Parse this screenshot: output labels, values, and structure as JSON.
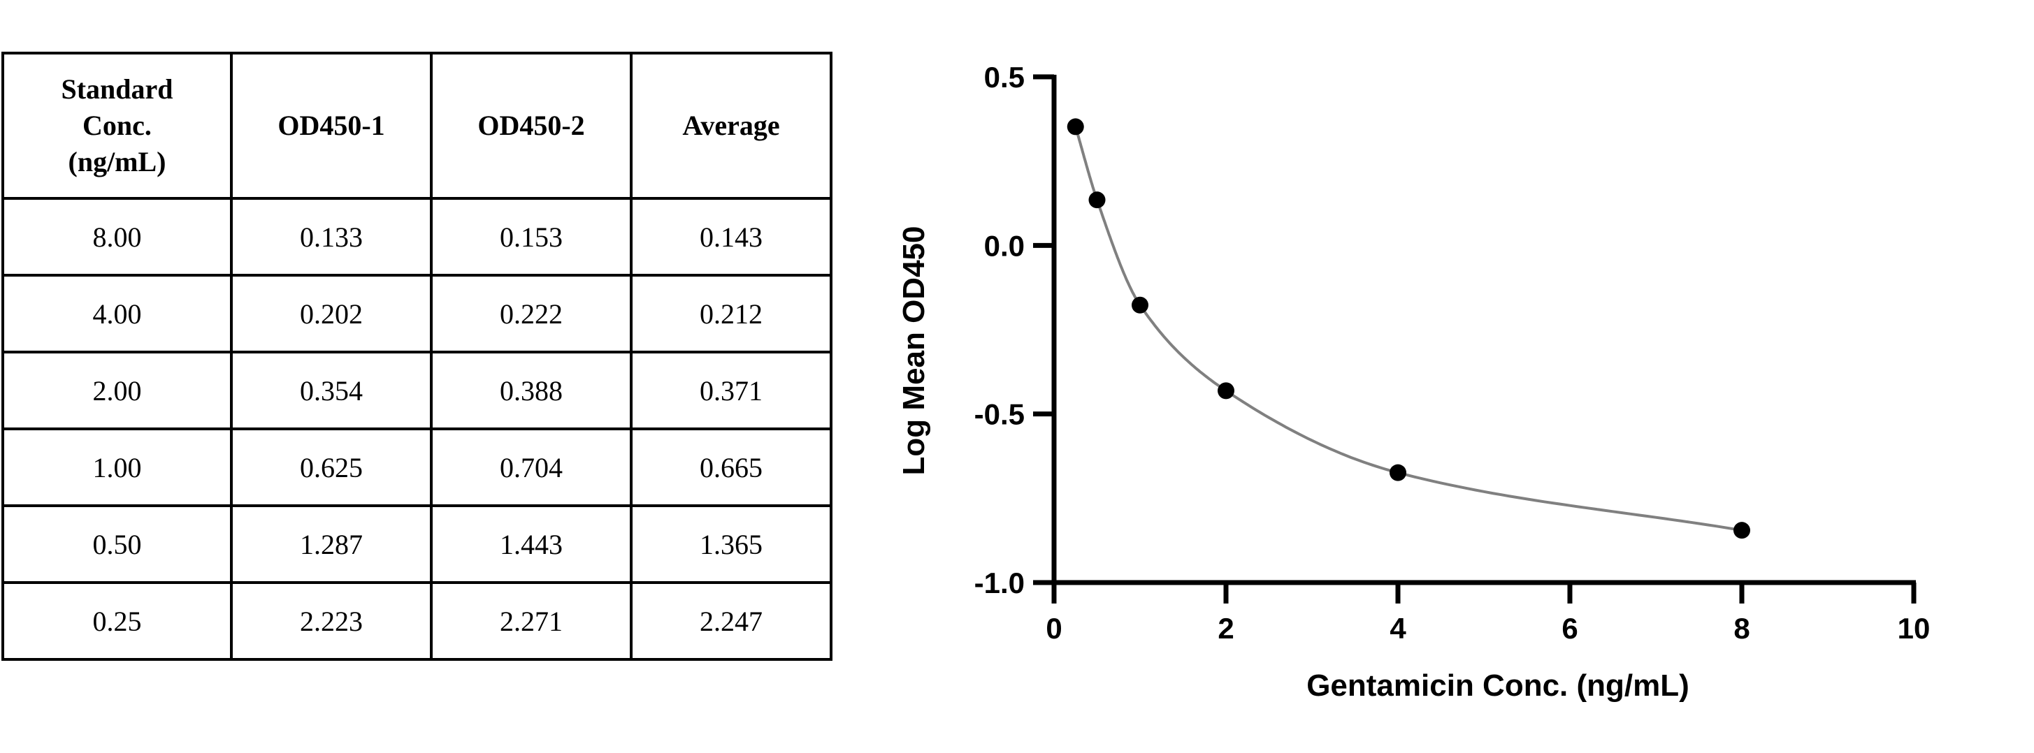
{
  "table": {
    "headers": [
      "Standard Conc. (ng/mL)",
      "OD450-1",
      "OD450-2",
      "Average"
    ],
    "header_lines": [
      [
        "Standard",
        "Conc.",
        "(ng/mL)"
      ],
      [
        "OD450-1"
      ],
      [
        "OD450-2"
      ],
      [
        "Average"
      ]
    ],
    "rows": [
      [
        "8.00",
        "0.133",
        "0.153",
        "0.143"
      ],
      [
        "4.00",
        "0.202",
        "0.222",
        "0.212"
      ],
      [
        "2.00",
        "0.354",
        "0.388",
        "0.371"
      ],
      [
        "1.00",
        "0.625",
        "0.704",
        "0.665"
      ],
      [
        "0.50",
        "1.287",
        "1.443",
        "1.365"
      ],
      [
        "0.25",
        "2.223",
        "2.271",
        "2.247"
      ]
    ]
  },
  "chart_data": {
    "type": "scatter",
    "title": "",
    "xlabel": "Gentamicin Conc. (ng/mL)",
    "ylabel": "Log Mean OD450",
    "xlim": [
      0,
      10
    ],
    "ylim": [
      -1.0,
      0.5
    ],
    "xticks": [
      "0",
      "2",
      "4",
      "6",
      "8",
      "10"
    ],
    "yticks": [
      "0.5",
      "0.0",
      "-0.5",
      "-1.0"
    ],
    "grid": false,
    "legend": "none",
    "series": [
      {
        "x": [
          0.25,
          0.5,
          1.0,
          2.0,
          4.0,
          8.0
        ],
        "y": [
          0.352,
          0.135,
          -0.177,
          -0.431,
          -0.674,
          -0.845
        ]
      }
    ],
    "fit_curve": {
      "type": "smooth",
      "color": "#808080"
    },
    "point_color": "#000000"
  }
}
